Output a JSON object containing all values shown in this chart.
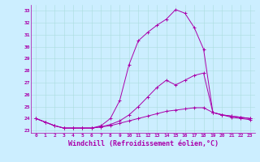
{
  "xlabel": "Windchill (Refroidissement éolien,°C)",
  "xlabel_fontsize": 6,
  "background_color": "#cceeff",
  "line_color": "#aa00aa",
  "ylim": [
    22.8,
    33.5
  ],
  "xlim": [
    -0.5,
    23.5
  ],
  "yticks": [
    23,
    24,
    25,
    26,
    27,
    28,
    29,
    30,
    31,
    32,
    33
  ],
  "xticks": [
    0,
    1,
    2,
    3,
    4,
    5,
    6,
    7,
    8,
    9,
    10,
    11,
    12,
    13,
    14,
    15,
    16,
    17,
    18,
    19,
    20,
    21,
    22,
    23
  ],
  "series": [
    [
      24.0,
      23.7,
      23.4,
      23.2,
      23.2,
      23.2,
      23.2,
      23.3,
      23.4,
      23.6,
      23.8,
      24.0,
      24.2,
      24.4,
      24.6,
      24.7,
      24.8,
      24.9,
      24.9,
      24.5,
      24.3,
      24.1,
      24.0,
      23.9
    ],
    [
      24.0,
      23.7,
      23.4,
      23.2,
      23.2,
      23.2,
      23.2,
      23.3,
      23.5,
      23.8,
      24.3,
      25.0,
      25.8,
      26.6,
      27.2,
      26.8,
      27.2,
      27.6,
      27.8,
      24.5,
      24.3,
      24.2,
      24.1,
      24.0
    ],
    [
      24.0,
      23.7,
      23.4,
      23.2,
      23.2,
      23.2,
      23.2,
      23.4,
      24.0,
      25.5,
      28.5,
      30.5,
      31.2,
      31.8,
      32.3,
      33.1,
      32.8,
      31.6,
      29.8,
      24.5,
      24.3,
      24.2,
      24.1,
      24.0
    ]
  ]
}
